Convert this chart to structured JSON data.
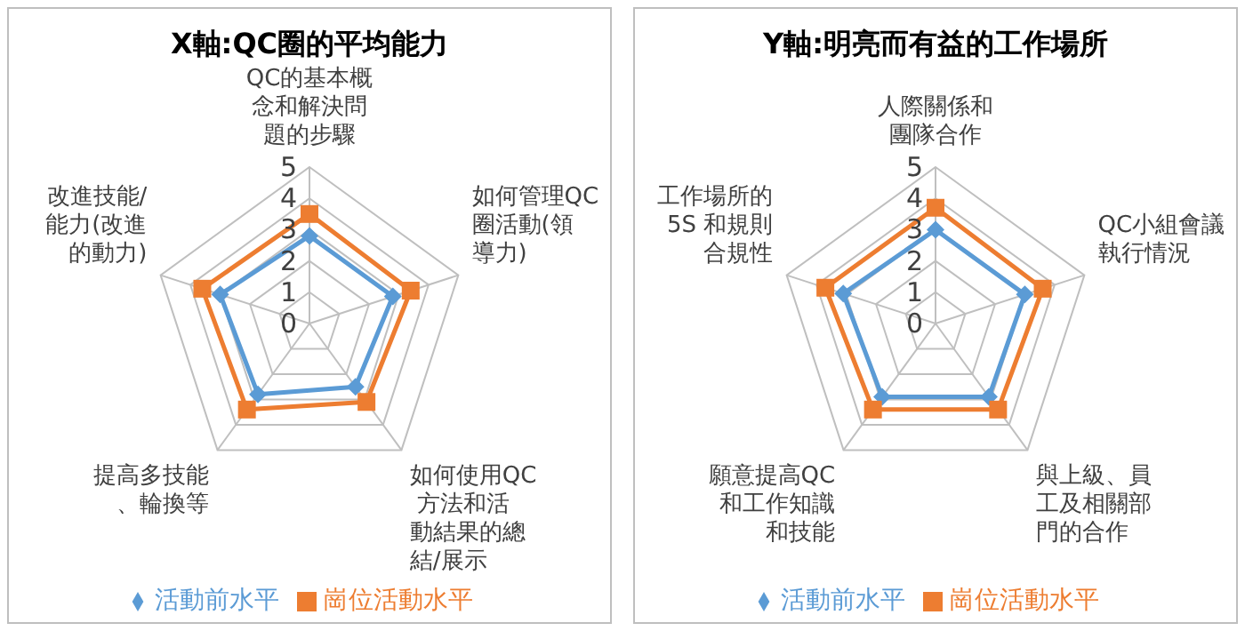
{
  "chart_data": [
    {
      "type": "radar",
      "title": "X軸:QC圈的平均能力",
      "categories": [
        "QC的基本概念和解決問題的步驟",
        "如何管理QC圈活動(領導力)",
        "如何使用QC 方法和活動結果的總結/展示",
        "提高多技能、輪換等",
        "改進技能/能力(改進的動力)"
      ],
      "series": [
        {
          "name": "活動前水平",
          "color": "#5b9bd5",
          "marker": "diamond",
          "values": [
            2.8,
            2.8,
            2.5,
            2.8,
            3.0
          ]
        },
        {
          "name": "崗位活動水平",
          "color": "#ed7d31",
          "marker": "square",
          "values": [
            3.5,
            3.4,
            3.1,
            3.4,
            3.6
          ]
        }
      ],
      "ylim": [
        0,
        5
      ],
      "yticks": [
        0,
        1,
        2,
        3,
        4,
        5
      ],
      "grid": true,
      "legend": "bottom"
    },
    {
      "type": "radar",
      "title": "Y軸:明亮而有益的工作場所",
      "categories": [
        "人際關係和團隊合作",
        "QC小組會議執行情況",
        "與上級、員工及相關部門的合作",
        "願意提高QC和工作知識和技能",
        "工作場所的5S 和規則合規性"
      ],
      "series": [
        {
          "name": "活動前水平",
          "color": "#5b9bd5",
          "marker": "diamond",
          "values": [
            3.0,
            3.0,
            2.9,
            2.9,
            3.1
          ]
        },
        {
          "name": "崗位活動水平",
          "color": "#ed7d31",
          "marker": "square",
          "values": [
            3.7,
            3.6,
            3.4,
            3.4,
            3.7
          ]
        }
      ],
      "ylim": [
        0,
        5
      ],
      "yticks": [
        0,
        1,
        2,
        3,
        4,
        5
      ],
      "grid": true,
      "legend": "bottom"
    }
  ]
}
